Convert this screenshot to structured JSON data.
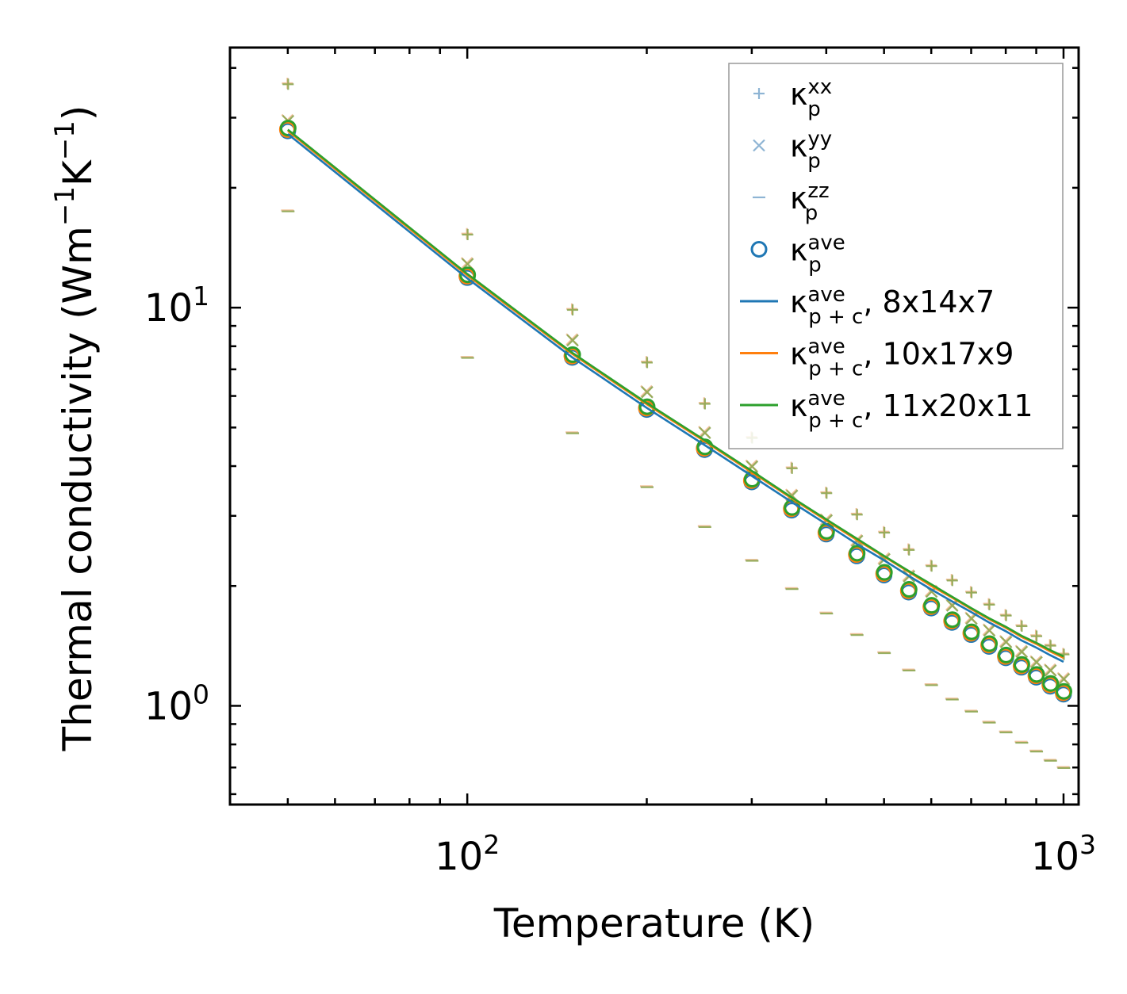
{
  "chart_data": {
    "type": "scatter",
    "title": "",
    "xlabel": "Temperature (K)",
    "ylabel_main": "Thermal conductivity (Wm",
    "ylabel_sup1": "−1",
    "ylabel_mid": "K",
    "ylabel_sup2": "−1",
    "ylabel_end": ")",
    "x_scale": "log",
    "y_scale": "log",
    "xlim": [
      40,
      1060
    ],
    "ylim": [
      0.565,
      45
    ],
    "x_ticks": [
      {
        "base": "10",
        "exp": "2",
        "value": 100
      },
      {
        "base": "10",
        "exp": "3",
        "value": 1000
      }
    ],
    "y_ticks": [
      {
        "base": "10",
        "exp": "0",
        "value": 1
      },
      {
        "base": "10",
        "exp": "1",
        "value": 10
      }
    ],
    "legend_position": "top-right",
    "legend": [
      {
        "sym": "κ",
        "sup": "xx",
        "sub": "p",
        "tail": "",
        "marker": "plus",
        "color": "#8eb4d4"
      },
      {
        "sym": "κ",
        "sup": "yy",
        "sub": "p",
        "tail": "",
        "marker": "x",
        "color": "#8eb4d4"
      },
      {
        "sym": "κ",
        "sup": "zz",
        "sub": "p",
        "tail": "",
        "marker": "dash",
        "color": "#8eb4d4"
      },
      {
        "sym": "κ",
        "sup": "ave",
        "sub": "p",
        "tail": "",
        "marker": "circle",
        "color": "#1f77b4"
      },
      {
        "sym": "κ",
        "sup": "ave",
        "sub": "p + c",
        "tail": ", 8x14x7",
        "marker": "line",
        "color": "#1f77b4"
      },
      {
        "sym": "κ",
        "sup": "ave",
        "sub": "p + c",
        "tail": ", 10x17x9",
        "marker": "line",
        "color": "#ff7f0e"
      },
      {
        "sym": "κ",
        "sup": "ave",
        "sub": "p + c",
        "tail": ", 11x20x11",
        "marker": "line",
        "color": "#2ca02c"
      }
    ],
    "x": [
      50,
      100,
      150,
      200,
      250,
      300,
      350,
      400,
      450,
      500,
      550,
      600,
      650,
      700,
      750,
      800,
      850,
      900,
      950,
      1000
    ],
    "series": [
      {
        "name": "kappa_p_xx",
        "marker": "plus",
        "colors": [
          "#8eb4d4",
          "#f2bc8d",
          "#8fa84c"
        ],
        "values": [
          36.5,
          15.3,
          9.9,
          7.3,
          5.75,
          4.72,
          3.96,
          3.43,
          3.03,
          2.73,
          2.47,
          2.25,
          2.07,
          1.93,
          1.8,
          1.69,
          1.59,
          1.5,
          1.42,
          1.35
        ]
      },
      {
        "name": "kappa_p_yy",
        "marker": "x",
        "colors": [
          "#8eb4d4",
          "#f2bc8d",
          "#8fa84c"
        ],
        "values": [
          29.5,
          12.9,
          8.3,
          6.15,
          4.86,
          4.0,
          3.38,
          2.93,
          2.6,
          2.34,
          2.12,
          1.94,
          1.79,
          1.66,
          1.55,
          1.45,
          1.37,
          1.29,
          1.23,
          1.17
        ]
      },
      {
        "name": "kappa_p_zz",
        "marker": "dash",
        "colors": [
          "#8eb4d4",
          "#f2bc8d",
          "#8fa84c"
        ],
        "values": [
          17.5,
          7.5,
          4.85,
          3.55,
          2.82,
          2.32,
          1.97,
          1.71,
          1.51,
          1.36,
          1.23,
          1.13,
          1.04,
          0.97,
          0.91,
          0.86,
          0.81,
          0.77,
          0.73,
          0.7
        ]
      },
      {
        "name": "kappa_p_ave",
        "marker": "circle",
        "colors": [
          "#1f77b4",
          "#ff7f0e",
          "#2ca02c"
        ],
        "values": [
          27.8,
          11.9,
          7.5,
          5.55,
          4.4,
          3.65,
          3.1,
          2.7,
          2.38,
          2.13,
          1.93,
          1.76,
          1.62,
          1.51,
          1.41,
          1.32,
          1.25,
          1.18,
          1.12,
          1.07
        ]
      },
      {
        "name": "kappa_pc_ave_8x14x7",
        "marker": "line",
        "color": "#1f77b4",
        "values": [
          27.3,
          11.85,
          7.5,
          5.6,
          4.52,
          3.78,
          3.25,
          2.86,
          2.55,
          2.32,
          2.12,
          1.96,
          1.83,
          1.72,
          1.62,
          1.54,
          1.46,
          1.4,
          1.34,
          1.29
        ]
      },
      {
        "name": "kappa_pc_ave_10x17x9",
        "marker": "line",
        "color": "#ff7f0e",
        "values": [
          27.8,
          12.05,
          7.65,
          5.72,
          4.62,
          3.86,
          3.32,
          2.92,
          2.61,
          2.37,
          2.17,
          2.0,
          1.87,
          1.75,
          1.65,
          1.57,
          1.49,
          1.43,
          1.37,
          1.32
        ]
      },
      {
        "name": "kappa_pc_ave_11x20x11",
        "marker": "line",
        "color": "#2ca02c",
        "values": [
          28.0,
          12.15,
          7.7,
          5.76,
          4.65,
          3.89,
          3.34,
          2.94,
          2.63,
          2.38,
          2.18,
          2.02,
          1.88,
          1.76,
          1.66,
          1.58,
          1.5,
          1.44,
          1.38,
          1.33
        ]
      }
    ]
  }
}
